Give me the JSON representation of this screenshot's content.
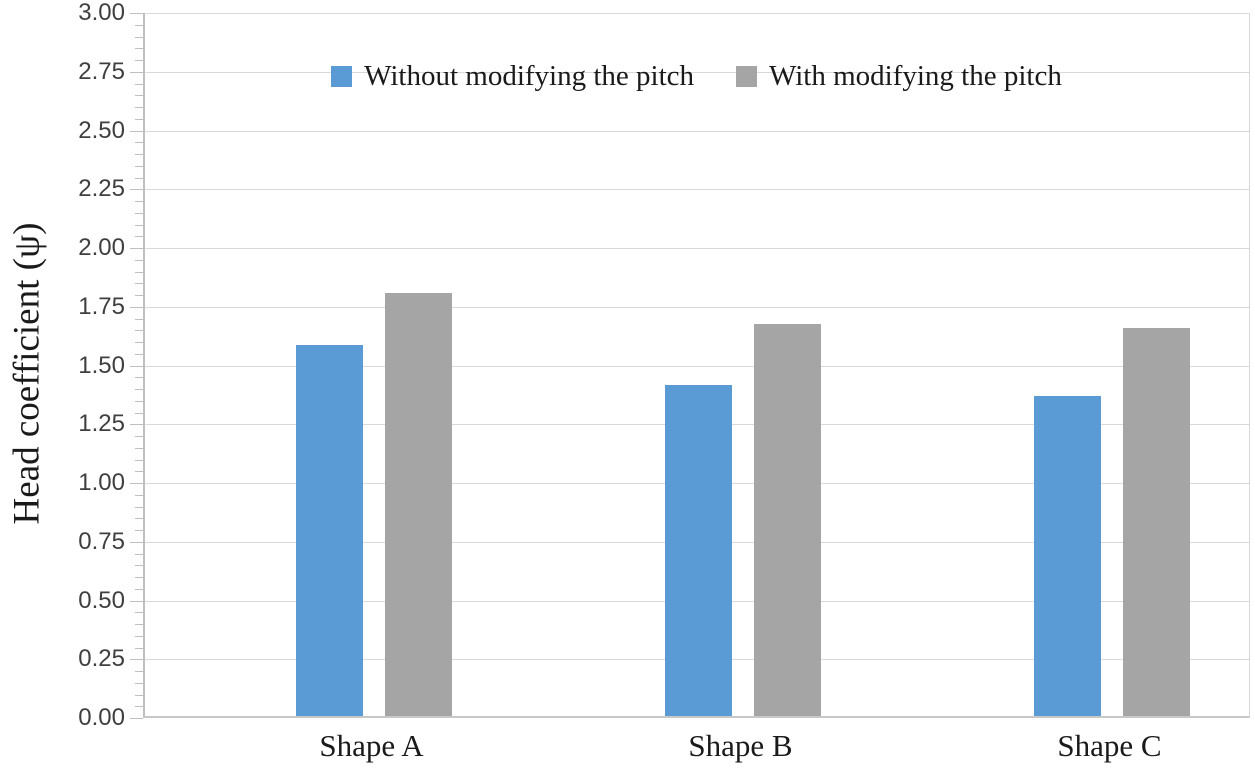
{
  "chart_data": {
    "type": "bar",
    "title": "",
    "xlabel": "",
    "ylabel": "Head coefficient (ψ)",
    "categories": [
      "Shape A",
      "Shape B",
      "Shape C"
    ],
    "series": [
      {
        "name": "Without modifying the pitch",
        "color": "#5B9BD5",
        "values": [
          1.58,
          1.41,
          1.36
        ]
      },
      {
        "name": "With modifying the pitch",
        "color": "#A5A5A5",
        "values": [
          1.8,
          1.67,
          1.65
        ]
      }
    ],
    "ylim": [
      0,
      3
    ],
    "ytick_step": 0.25,
    "yminor_tick_step": 0.05,
    "ytick_labels_top_to_bottom": [
      "3.00",
      "2.75",
      "2.50",
      "2.25",
      "2.00",
      "1.75",
      "1.50",
      "1.25",
      "1.00",
      "0.75",
      "0.50",
      "0.25",
      "0.00"
    ],
    "grid": "horizontal-major",
    "legend_position": "top-center",
    "colors": {
      "gridline": "#D9D9D9",
      "axis": "#BFBFBF",
      "tick_label_text": "#3F3F3F",
      "body_text": "#1A1A1A"
    }
  }
}
